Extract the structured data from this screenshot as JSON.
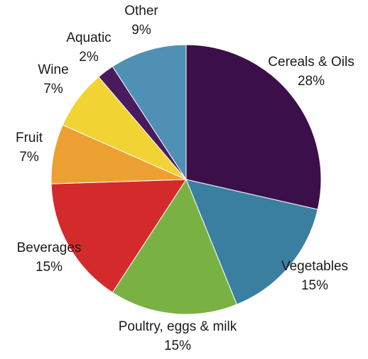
{
  "chart_data": {
    "type": "pie",
    "title": "",
    "start_angle_deg": 0,
    "direction": "clockwise",
    "slices": [
      {
        "label": "Cereals & Oils",
        "value": 28,
        "value_label": "28%",
        "color": "#3b0f4a"
      },
      {
        "label": "Vegetables",
        "value": 15,
        "value_label": "15%",
        "color": "#3a7fa0"
      },
      {
        "label": "Poultry, eggs & milk",
        "value": 15,
        "value_label": "15%",
        "color": "#79b142"
      },
      {
        "label": "Beverages",
        "value": 15,
        "value_label": "15%",
        "color": "#d42a2c"
      },
      {
        "label": "Fruit",
        "value": 7,
        "value_label": "7%",
        "color": "#eda032"
      },
      {
        "label": "Wine",
        "value": 7,
        "value_label": "7%",
        "color": "#f1d434"
      },
      {
        "label": "Aquatic",
        "value": 2,
        "value_label": "2%",
        "color": "#4a1a5e"
      },
      {
        "label": "Other",
        "value": 9,
        "value_label": "9%",
        "color": "#5090b4"
      }
    ]
  }
}
